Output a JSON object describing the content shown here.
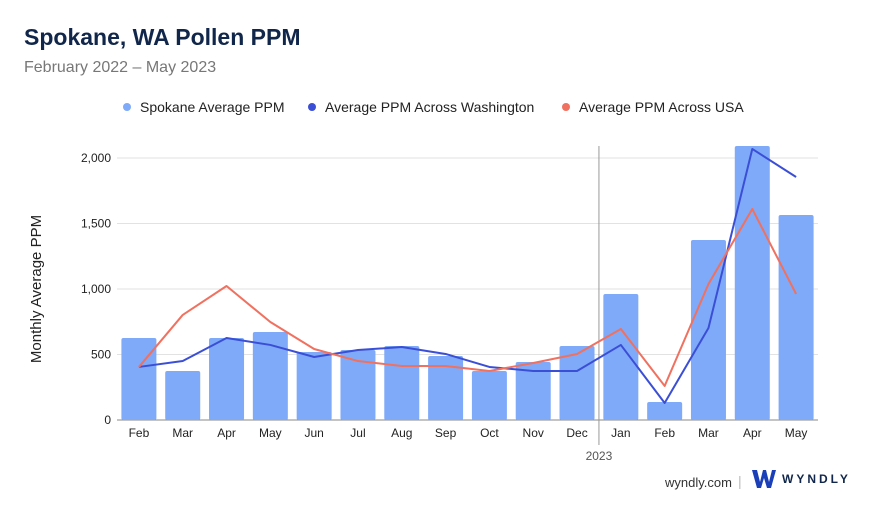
{
  "chart_data": {
    "type": "bar",
    "title": "Spokane, WA Pollen PPM",
    "subtitle": "February 2022 – May 2023",
    "ylabel": "Monthly Average PPM",
    "xlabel": "",
    "ylim": [
      0,
      2000
    ],
    "yticks": [
      0,
      500,
      1000,
      1500,
      2000
    ],
    "ytick_labels": [
      "0",
      "500",
      "1,000",
      "1,500",
      "2,000"
    ],
    "grid": true,
    "legend_position": "top-center",
    "categories": [
      "Feb",
      "Mar",
      "Apr",
      "May",
      "Jun",
      "Jul",
      "Aug",
      "Sep",
      "Oct",
      "Nov",
      "Dec",
      "Jan",
      "Feb",
      "Mar",
      "Apr",
      "May"
    ],
    "year_marker": {
      "label": "2023",
      "before_index": 11
    },
    "series": [
      {
        "name": "Spokane Average PPM",
        "kind": "bar",
        "color": "#7faaf9",
        "values": [
          626,
          374,
          626,
          672,
          519,
          534,
          565,
          489,
          374,
          443,
          565,
          962,
          137,
          1374,
          2092,
          1565
        ]
      },
      {
        "name": "Average PPM Across Washington",
        "kind": "line",
        "color": "#3b4fd6",
        "values": [
          405,
          450,
          626,
          573,
          481,
          534,
          557,
          504,
          405,
          374,
          374,
          573,
          130,
          702,
          2069,
          1855
        ]
      },
      {
        "name": "Average PPM Across USA",
        "kind": "line",
        "color": "#f0715f",
        "values": [
          405,
          802,
          1023,
          748,
          542,
          450,
          412,
          412,
          374,
          435,
          504,
          695,
          260,
          1038,
          1611,
          962
        ]
      }
    ]
  },
  "footer": {
    "site": "wyndly.com",
    "separator": "|",
    "brand": "WYNDLY"
  }
}
